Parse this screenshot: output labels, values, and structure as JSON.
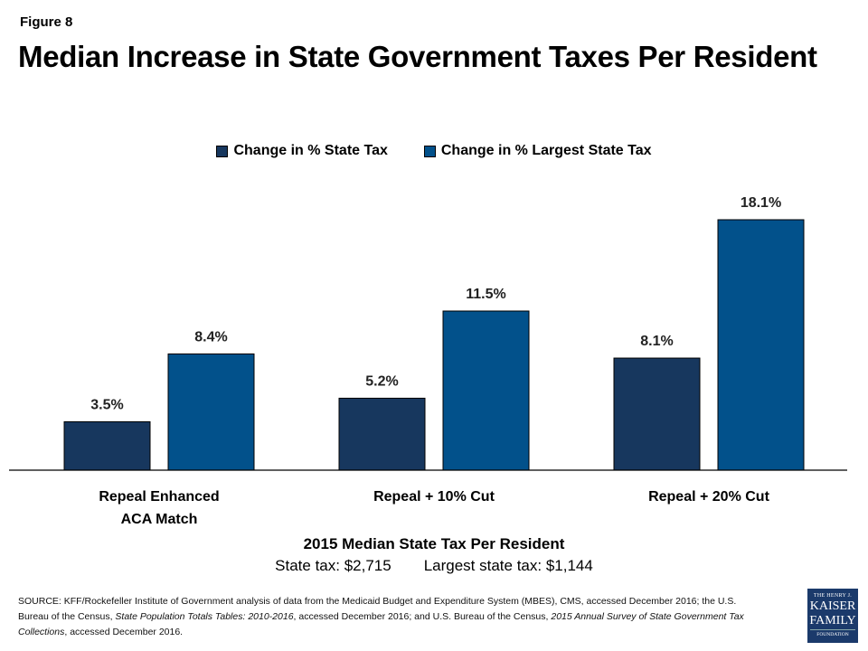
{
  "figure_label": "Figure 8",
  "title": "Median Increase in State Government Taxes Per Resident",
  "chart_data": {
    "type": "bar",
    "title": "Median Increase in State Government Taxes Per Resident",
    "xlabel": "",
    "ylabel": "",
    "ylim": [
      0,
      18.1
    ],
    "grid": false,
    "legend_position": "top-center",
    "categories": [
      "Repeal Enhanced ACA Match",
      "Repeal + 10% Cut",
      "Repeal + 20% Cut"
    ],
    "category_lines": [
      [
        "Repeal Enhanced",
        "ACA Match"
      ],
      [
        "Repeal + 10% Cut"
      ],
      [
        "Repeal + 20% Cut"
      ]
    ],
    "series": [
      {
        "name": "Change in % State Tax",
        "color": "#17375e",
        "values": [
          3.5,
          5.2,
          8.1
        ],
        "labels": [
          "3.5%",
          "5.2%",
          "8.1%"
        ]
      },
      {
        "name": "Change in % Largest State Tax",
        "color": "#02518b",
        "values": [
          8.4,
          11.5,
          18.1
        ],
        "labels": [
          "8.4%",
          "11.5%",
          "18.1%"
        ]
      }
    ]
  },
  "median": {
    "title": "2015 Median State Tax Per Resident",
    "state_tax": "State tax: $2,715",
    "largest_state_tax": "Largest state tax: $1,144"
  },
  "source": {
    "prefix": "SOURCE:  KFF/Rockefeller Institute of Government  analysis of data from the  Medicaid Budget and Expenditure System (MBES), CMS,  accessed December 2016; the U.S. Bureau of the Census, ",
    "italic1": "State Population Totals Tables: 2010-2016",
    "mid": ", accessed December  2016; and U.S. Bureau of the  Census, ",
    "italic2": "2015 Annual Survey of State  Government  Tax Collections",
    "suffix": ", accessed December  2016."
  },
  "logo": {
    "line1": "THE HENRY J.",
    "line2": "KAISER",
    "line3": "FAMILY",
    "line4": "FOUNDATION"
  }
}
